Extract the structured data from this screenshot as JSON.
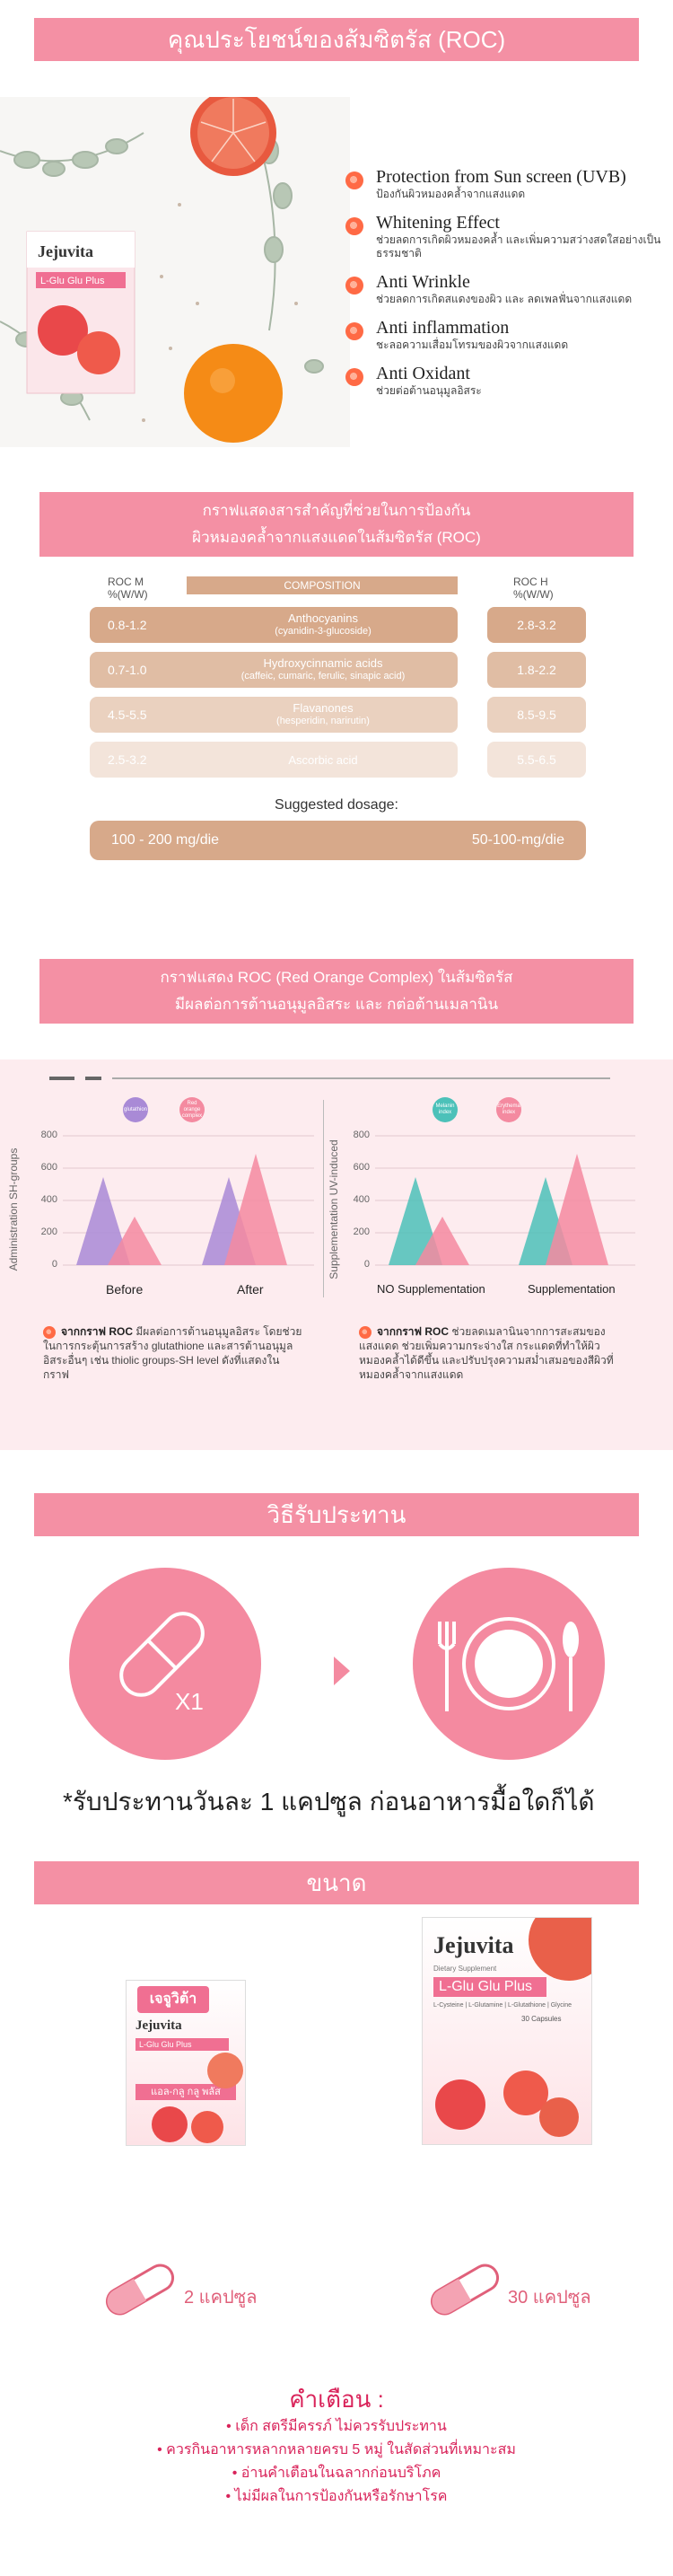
{
  "benefits_section": {
    "title": "คุณประโยชน์ของส้มซิตรัส (ROC)",
    "product_brand": "Jejuvita",
    "product_name": "L-Glu Glu Plus",
    "items": [
      {
        "en": "Protection from Sun screen (UVB)",
        "th": "ป้องกันผิวหมองคล้ำจากแสงแดด"
      },
      {
        "en": "Whitening Effect",
        "th": "ช่วยลดการเกิดผิวหมองคล้ำ และเพิ่มความสว่างสดใสอย่างเป็นธรรมชาติ"
      },
      {
        "en": "Anti Wrinkle",
        "th": "ช่วยลดการเกิดสแดงของผิว และ ลดเพลฟั่นจากแสงแดด"
      },
      {
        "en": "Anti inflammation",
        "th": "ชะลอความเสื่อมโทรมของผิวจากแสงแดด"
      },
      {
        "en": "Anti Oxidant",
        "th": "ช่วยต่อต้านอนุมูลอิสระ"
      }
    ]
  },
  "composition_section": {
    "title_line1": "กราฟแสดงสารสำคัญที่ช่วยในการป้องกัน",
    "title_line2": "ผิวหมองคล้ำจากแสงแดดในส้มซิตรัส (ROC)",
    "roc_m": "ROC M",
    "roc_m_unit": "%(W/W)",
    "roc_h": "ROC H",
    "roc_h_unit": "%(W/W)",
    "composition_header": "COMPOSITION",
    "rows": [
      {
        "m": "0.8-1.2",
        "name": "Anthocyanins",
        "sub": "(cyanidin-3-glucoside)",
        "h": "2.8-3.2",
        "color": "#d7a98a",
        "text": "#ffffff"
      },
      {
        "m": "0.7-1.0",
        "name": "Hydroxycinnamic acids",
        "sub": "(caffeic, cumaric, ferulic, sinapic acid)",
        "h": "1.8-2.2",
        "color": "#e0bda4",
        "text": "#ffffff"
      },
      {
        "m": "4.5-5.5",
        "name": "Flavanones",
        "sub": "(hesperidin, narirutin)",
        "h": "8.5-9.5",
        "color": "#ead1bf",
        "text": "#ffffff"
      },
      {
        "m": "2.5-3.2",
        "name": "Ascorbic acid",
        "sub": "",
        "h": "5.5-6.5",
        "color": "#f3e4da",
        "text": "#ffffff"
      }
    ],
    "dosage_label": "Suggested dosage:",
    "dosage_left": "100 - 200 mg/die",
    "dosage_right": "50-100-mg/die"
  },
  "graph_section": {
    "title_line1": "กราฟแสดง ROC (Red Orange Complex) ในส้มซิตรัส",
    "title_line2": "มีผลต่อการต้านอนุมูลอิสระ และ กต่อต้านเมลานิน",
    "left_chart": {
      "ylabel": "Administration SH-groups",
      "ticks": [
        "800",
        "600",
        "400",
        "200",
        "0"
      ],
      "legend": [
        "glutathion",
        "Red orange complex"
      ],
      "x_labels": [
        "Before",
        "After"
      ]
    },
    "right_chart": {
      "ylabel": "Supplementation UV-induced",
      "ticks": [
        "800",
        "600",
        "400",
        "200",
        "0"
      ],
      "legend": [
        "Melanin index",
        "Erythema index"
      ],
      "x_labels": [
        "NO Supplementation",
        "Supplementation"
      ]
    },
    "left_note_bold": "จากกราฟ ROC",
    "left_note": "มีผลต่อการต้านอนุมูลอิสระ โดยช่วยในการกระตุ้นการสร้าง glutathione และสารต้านอนุมูลอิสระอื่นๆ เช่น thiolic groups-SH level ดังที่แสดงในกราฟ",
    "right_note_bold": "จากกราฟ ROC",
    "right_note": "ช่วยลดเมลานินจากการสะสมของแสงแดด ช่วยเพิ่มความกระจ่างใส กระแดดที่ทำให้ผิวหมองคล้ำได้ดีขึ้น และปรับปรุงความสม่ำเสมอของสีผิวที่หมองคล้ำจากแสงแดด"
  },
  "howto_section": {
    "title": "วิธีรับประทาน",
    "capsule_count": "X1",
    "usage": "*รับประทานวันละ 1 แคปซูล ก่อนอาหารมื้อใดก็ได้"
  },
  "size_section": {
    "title": "ขนาด",
    "small_label": "2 แคปซูล",
    "large_label": "30 แคปซูล",
    "small_box_th": "เจจูวิต้า",
    "small_box_name": "แอล-กลู กลู พลัส",
    "large_box_supplement": "Dietary Supplement",
    "large_box_ingredients": "L-Cysteine | L-Glutamine | L-Glutathione | Glycine",
    "large_box_count": "30 Capsules"
  },
  "warnings": {
    "title": "คำเตือน :",
    "items": [
      "เด็ก สตรีมีครรภ์ ไม่ควรรับประทาน",
      "ควรกินอาหารหลากหลายครบ 5 หมู่ ในสัดส่วนที่เหมาะสม",
      "อ่านคำเตือนในฉลากก่อนบริโภค",
      "ไม่มีผลในการป้องกันหรือรักษาโรค"
    ]
  }
}
